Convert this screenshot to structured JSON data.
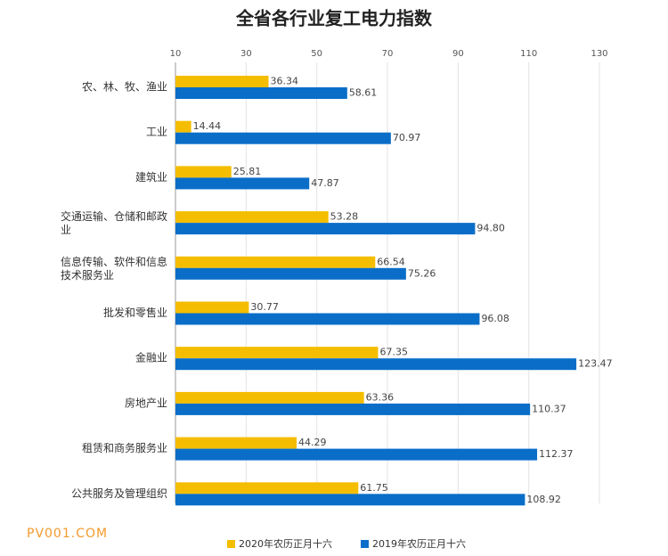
{
  "chart_data": {
    "type": "bar",
    "orientation": "horizontal",
    "title": "全省各行业复工电力指数",
    "categories": [
      "农、林、牧、渔业",
      "工业",
      "建筑业",
      "交通运输、仓储和邮政业",
      "信息传输、软件和信息技术服务业",
      "批发和零售业",
      "金融业",
      "房地产业",
      "租赁和商务服务业",
      "公共服务及管理组织"
    ],
    "series": [
      {
        "name": "2020年农历正月十六",
        "color": "#f5bd00",
        "values": [
          36.34,
          14.44,
          25.81,
          53.28,
          66.54,
          30.77,
          67.35,
          63.36,
          44.29,
          61.75
        ],
        "value_labels": [
          "36.34",
          "14.44",
          "25.81",
          "53.28",
          "66.54",
          "30.77",
          "67.35",
          "63.36",
          "44.29",
          "61.75"
        ]
      },
      {
        "name": "2019年农历正月十六",
        "color": "#0a6ec8",
        "values": [
          58.61,
          70.97,
          47.87,
          94.8,
          75.26,
          96.08,
          123.47,
          110.37,
          112.37,
          108.92
        ],
        "value_labels": [
          "58.61",
          "70.97",
          "47.87",
          "94.80",
          "75.26",
          "96.08",
          "123.47",
          "110.37",
          "112.37",
          "108.92"
        ]
      }
    ],
    "xlim": [
      10,
      130
    ],
    "xticks": [
      10,
      30,
      50,
      70,
      90,
      110,
      130
    ],
    "grid": true,
    "legend": "bottom",
    "watermark": "PV001.COM"
  }
}
